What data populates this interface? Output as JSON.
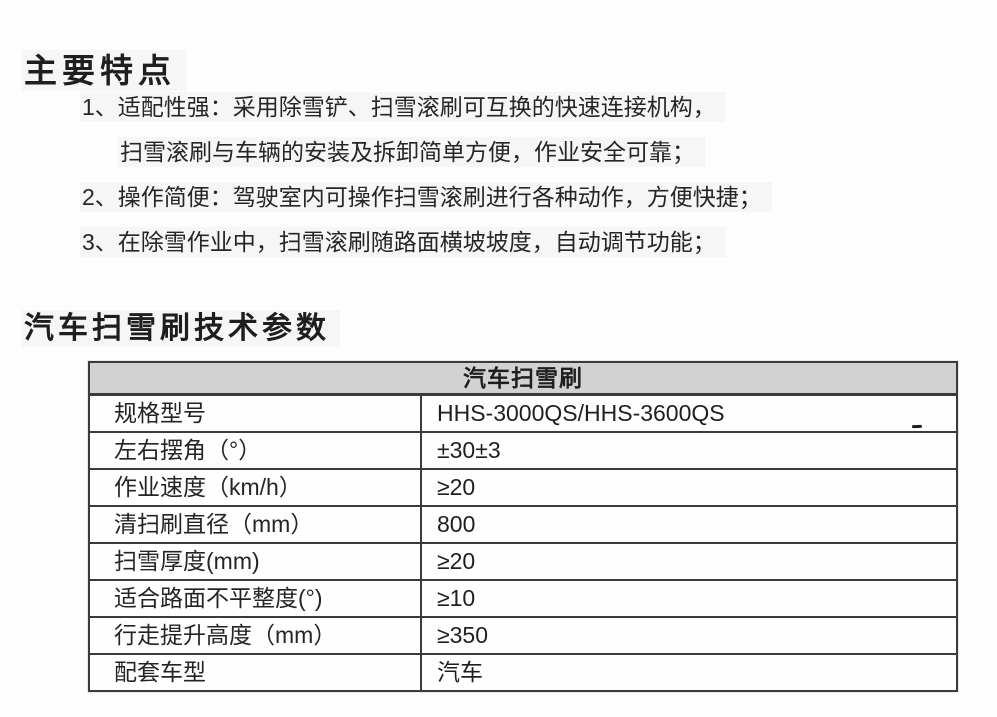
{
  "page": {
    "main_title": "主要特点",
    "section_title": "汽车扫雪刷技术参数",
    "background_color": "#fdfdfd",
    "text_color": "#232323"
  },
  "features": {
    "lines": [
      {
        "text": "1、适配性强：采用除雪铲、扫雪滚刷可互换的快速连接机构，"
      },
      {
        "text": "扫雪滚刷与车辆的安装及拆卸简单方便，作业安全可靠；"
      },
      {
        "text": "2、操作简便：驾驶室内可操作扫雪滚刷进行各种动作，方便快捷；"
      },
      {
        "text": "3、在除雪作业中，扫雪滚刷随路面横坡坡度，自动调节功能；"
      }
    ]
  },
  "spec_table": {
    "header": "汽车扫雪刷",
    "header_bg_color": "#d2d2d2",
    "border_color": "#3b3b3b",
    "rows": [
      {
        "label": "规格型号",
        "value": "HHS-3000QS/HHS-3600QS"
      },
      {
        "label": "左右摆角（°）",
        "value": "±30±3"
      },
      {
        "label": "作业速度（km/h）",
        "value": "≥20"
      },
      {
        "label": "清扫刷直径（mm）",
        "value": "800"
      },
      {
        "label": "扫雪厚度(mm)",
        "value": "≥20"
      },
      {
        "label": "适合路面不平整度(°)",
        "value": "≥10"
      },
      {
        "label": "行走提升高度（mm）",
        "value": "≥350"
      },
      {
        "label": "配套车型",
        "value": "汽车"
      }
    ]
  }
}
